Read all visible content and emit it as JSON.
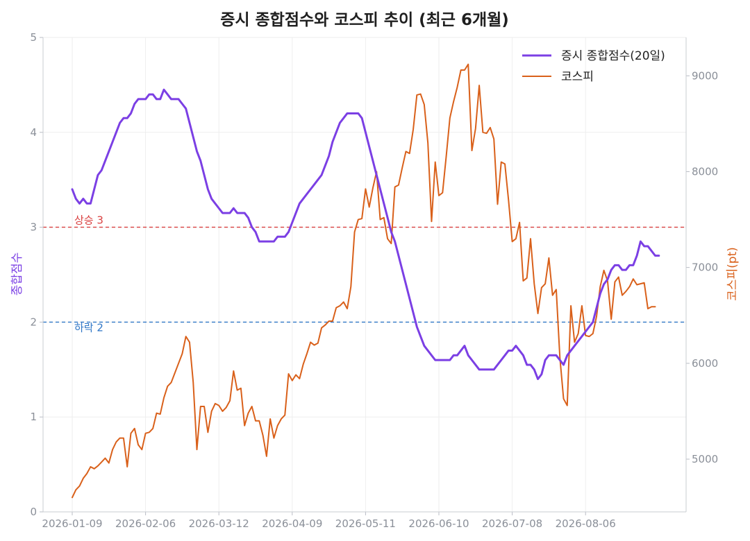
{
  "chart_data": {
    "type": "line",
    "title": "증시 종합점수와 코스피 추이 (최근 6개월)",
    "x_ticks": [
      "2026-01-09",
      "2026-02-06",
      "2026-03-12",
      "2026-04-09",
      "2026-05-11",
      "2026-06-10",
      "2026-07-08",
      "2026-08-06"
    ],
    "ylabel_left": "종합점수",
    "ylabel_right": "코스피(pt)",
    "ylim_left": [
      0,
      5
    ],
    "ylim_right": [
      4450,
      9400
    ],
    "y_ticks_left": [
      "0",
      "1",
      "2",
      "3",
      "4",
      "5"
    ],
    "y_ticks_right": [
      "5000",
      "6000",
      "7000",
      "8000",
      "9000"
    ],
    "reference_lines": [
      {
        "label": "상승 3",
        "value": 3,
        "color": "#d94040"
      },
      {
        "label": "하락 2",
        "value": 2,
        "color": "#2f76c6"
      }
    ],
    "legend_position": "top-right",
    "grid": true,
    "series": [
      {
        "name": "증시 종합점수(20일)",
        "axis": "left",
        "color": "#7b3fe4",
        "x_start": 0,
        "values": [
          3.4,
          3.3,
          3.25,
          3.3,
          3.25,
          3.25,
          3.4,
          3.55,
          3.6,
          3.7,
          3.8,
          3.9,
          4.0,
          4.1,
          4.15,
          4.15,
          4.2,
          4.3,
          4.35,
          4.35,
          4.35,
          4.4,
          4.4,
          4.35,
          4.35,
          4.45,
          4.4,
          4.35,
          4.35,
          4.35,
          4.3,
          4.25,
          4.1,
          3.95,
          3.8,
          3.7,
          3.55,
          3.4,
          3.3,
          3.25,
          3.2,
          3.15,
          3.15,
          3.15,
          3.2,
          3.15,
          3.15,
          3.15,
          3.1,
          3.0,
          2.95,
          2.85,
          2.85,
          2.85,
          2.85,
          2.85,
          2.9,
          2.9,
          2.9,
          2.95,
          3.05,
          3.15,
          3.25,
          3.3,
          3.35,
          3.4,
          3.45,
          3.5,
          3.55,
          3.65,
          3.75,
          3.9,
          4.0,
          4.1,
          4.15,
          4.2,
          4.2,
          4.2,
          4.2,
          4.15,
          4.0,
          3.85,
          3.7,
          3.55,
          3.4,
          3.25,
          3.1,
          2.95,
          2.85,
          2.7,
          2.55,
          2.4,
          2.25,
          2.1,
          1.95,
          1.85,
          1.75,
          1.7,
          1.65,
          1.6,
          1.6,
          1.6,
          1.6,
          1.6,
          1.65,
          1.65,
          1.7,
          1.75,
          1.65,
          1.6,
          1.55,
          1.5,
          1.5,
          1.5,
          1.5,
          1.5,
          1.55,
          1.6,
          1.65,
          1.7,
          1.7,
          1.75,
          1.7,
          1.65,
          1.55,
          1.55,
          1.5,
          1.4,
          1.45,
          1.6,
          1.65,
          1.65,
          1.65,
          1.6,
          1.55,
          1.65,
          1.7,
          1.75,
          1.8,
          1.85,
          1.9,
          1.95,
          2.0,
          2.15,
          2.3,
          2.4,
          2.45,
          2.55,
          2.6,
          2.6,
          2.55,
          2.55,
          2.6,
          2.6,
          2.7,
          2.85,
          2.8,
          2.8,
          2.75,
          2.7,
          2.7
        ]
      },
      {
        "name": "코스피",
        "axis": "right",
        "color": "#d9601a",
        "x_start": 0,
        "values": [
          4600,
          4680,
          4720,
          4800,
          4850,
          4920,
          4900,
          4930,
          4970,
          5010,
          4960,
          5100,
          5180,
          5220,
          5220,
          4920,
          5270,
          5320,
          5150,
          5100,
          5270,
          5280,
          5320,
          5480,
          5470,
          5640,
          5760,
          5800,
          5900,
          6000,
          6100,
          6280,
          6220,
          5800,
          5100,
          5550,
          5550,
          5280,
          5500,
          5580,
          5560,
          5500,
          5540,
          5610,
          5920,
          5720,
          5740,
          5350,
          5480,
          5550,
          5400,
          5400,
          5250,
          5030,
          5420,
          5220,
          5350,
          5420,
          5460,
          5890,
          5820,
          5880,
          5840,
          5990,
          6100,
          6220,
          6190,
          6210,
          6370,
          6400,
          6440,
          6440,
          6580,
          6600,
          6640,
          6570,
          6800,
          7370,
          7500,
          7510,
          7820,
          7630,
          7830,
          8000,
          7500,
          7520,
          7300,
          7250,
          7840,
          7860,
          8040,
          8210,
          8190,
          8440,
          8800,
          8810,
          8700,
          8300,
          7480,
          8100,
          7750,
          7780,
          8160,
          8560,
          8730,
          8880,
          9060,
          9060,
          9120,
          8220,
          8450,
          8900,
          8410,
          8400,
          8460,
          8340,
          7660,
          8100,
          8080,
          7700,
          7270,
          7300,
          7470,
          6860,
          6890,
          7300,
          6830,
          6520,
          6790,
          6830,
          7100,
          6710,
          6770,
          6060,
          5630,
          5560,
          6600,
          6220,
          6310,
          6600,
          6290,
          6280,
          6310,
          6490,
          6800,
          6970,
          6860,
          6460,
          6850,
          6900,
          6710,
          6750,
          6800,
          6880,
          6820,
          6830,
          6840,
          6570,
          6590,
          6590
        ]
      }
    ]
  }
}
